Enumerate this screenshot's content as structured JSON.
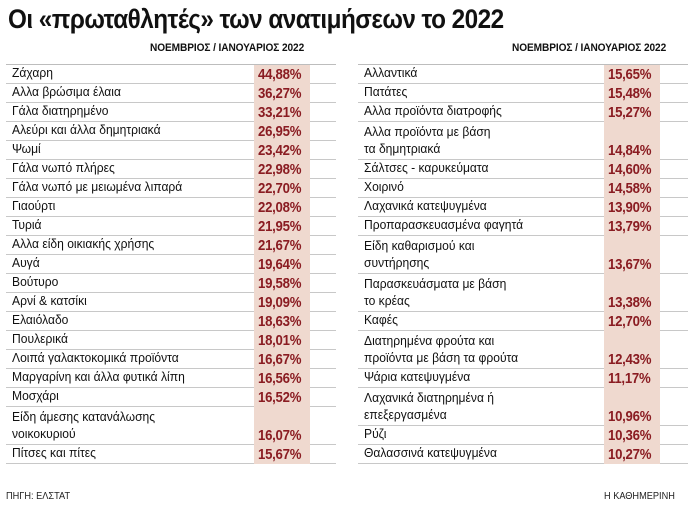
{
  "title": "Οι «πρωταθλητές» των ανατιμήσεων το 2022",
  "left_header": "ΝΟΕΜΒΡΙΟΣ / ΙΑΝΟΥΑΡΙΟΣ 2022",
  "right_header": "ΝΟΕΜΒΡΙΟΣ / ΙΑΝΟΥΑΡΙΟΣ 2022",
  "source": "ΠΗΓΗ: ΕΛΣΤΑΤ",
  "credit": "Η ΚΑΘΗΜΕΡΙΝΗ",
  "colors": {
    "value_text": "#8a1c22",
    "value_bg": "#efd9cf"
  },
  "left_rows": [
    {
      "label": [
        "Ζάχαρη"
      ],
      "value": "44,88%"
    },
    {
      "label": [
        "Αλλα βρώσιμα έλαια"
      ],
      "value": "36,27%"
    },
    {
      "label": [
        "Γάλα διατηρημένο"
      ],
      "value": "33,21%"
    },
    {
      "label": [
        "Αλεύρι και άλλα δημητριακά"
      ],
      "value": "26,95%"
    },
    {
      "label": [
        "Ψωμί"
      ],
      "value": "23,42%"
    },
    {
      "label": [
        "Γάλα νωπό πλήρες"
      ],
      "value": "22,98%"
    },
    {
      "label": [
        "Γάλα νωπό με μειωμένα λιπαρά"
      ],
      "value": "22,70%"
    },
    {
      "label": [
        "Γιαούρτι"
      ],
      "value": "22,08%"
    },
    {
      "label": [
        "Τυριά"
      ],
      "value": "21,95%"
    },
    {
      "label": [
        "Αλλα είδη οικιακής χρήσης"
      ],
      "value": "21,67%"
    },
    {
      "label": [
        "Αυγά"
      ],
      "value": "19,64%"
    },
    {
      "label": [
        "Βούτυρο"
      ],
      "value": "19,58%"
    },
    {
      "label": [
        "Αρνί & κατσίκι"
      ],
      "value": "19,09%"
    },
    {
      "label": [
        "Ελαιόλαδο"
      ],
      "value": "18,63%"
    },
    {
      "label": [
        "Πουλερικά"
      ],
      "value": "18,01%"
    },
    {
      "label": [
        "Λοιπά γαλακτοκομικά προϊόντα"
      ],
      "value": "16,67%"
    },
    {
      "label": [
        "Μαργαρίνη και άλλα φυτικά λίπη"
      ],
      "value": "16,56%"
    },
    {
      "label": [
        "Μοσχάρι"
      ],
      "value": "16,52%"
    },
    {
      "label": [
        "Είδη άμεσης κατανάλωσης",
        "νοικοκυριού"
      ],
      "value": "16,07%"
    },
    {
      "label": [
        "Πίτσες και πίτες"
      ],
      "value": "15,67%"
    }
  ],
  "right_rows": [
    {
      "label": [
        "Αλλαντικά"
      ],
      "value": "15,65%"
    },
    {
      "label": [
        "Πατάτες"
      ],
      "value": "15,48%"
    },
    {
      "label": [
        "Αλλα προϊόντα διατροφής"
      ],
      "value": "15,27%"
    },
    {
      "label": [
        "Αλλα προϊόντα με βάση",
        "τα δημητριακά"
      ],
      "value": "14,84%"
    },
    {
      "label": [
        "Σάλτσες - καρυκεύματα"
      ],
      "value": "14,60%"
    },
    {
      "label": [
        "Χοιρινό"
      ],
      "value": "14,58%"
    },
    {
      "label": [
        "Λαχανικά κατεψυγμένα"
      ],
      "value": "13,90%"
    },
    {
      "label": [
        "Προπαρασκευασμένα φαγητά"
      ],
      "value": "13,79%"
    },
    {
      "label": [
        "Είδη καθαρισμού και",
        "συντήρησης"
      ],
      "value": "13,67%"
    },
    {
      "label": [
        "Παρασκευάσματα με βάση",
        "το κρέας"
      ],
      "value": "13,38%"
    },
    {
      "label": [
        "Καφές"
      ],
      "value": "12,70%"
    },
    {
      "label": [
        "Διατηρημένα φρούτα και",
        "προϊόντα με βάση τα φρούτα"
      ],
      "value": "12,43%"
    },
    {
      "label": [
        "Ψάρια κατεψυγμένα"
      ],
      "value": "11,17%"
    },
    {
      "label": [
        "Λαχανικά διατηρημένα ή",
        "επεξεργασμένα"
      ],
      "value": "10,96%"
    },
    {
      "label": [
        "Ρύζι"
      ],
      "value": "10,36%"
    },
    {
      "label": [
        "Θαλασσινά κατεψυγμένα"
      ],
      "value": "10,27%"
    }
  ]
}
